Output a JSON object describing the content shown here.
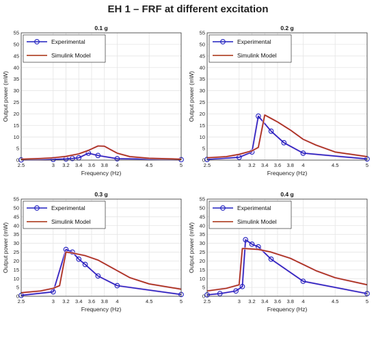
{
  "figure_title": "EH 1 – FRF at different excitation",
  "colors": {
    "experimental": "#1f1fbf",
    "simulink": "#a52a0a",
    "grid": "#e4e4e4",
    "axis": "#333333",
    "glow": "#f2c8ee"
  },
  "chart_data": [
    {
      "type": "line",
      "title": "0.1 g",
      "xlabel": "Frequency (Hz)",
      "ylabel": "Output power (mW)",
      "xlim": [
        2.5,
        5
      ],
      "ylim": [
        0,
        55
      ],
      "xticks": [
        2.5,
        3,
        3.2,
        3.4,
        3.6,
        3.8,
        4,
        4.5,
        5
      ],
      "yticks": [
        0,
        5,
        10,
        15,
        20,
        25,
        30,
        35,
        40,
        45,
        50,
        55
      ],
      "grid": true,
      "legend_position": "top-left",
      "series": [
        {
          "name": "Experimental",
          "markers": true,
          "x": [
            2.5,
            3.0,
            3.2,
            3.3,
            3.4,
            3.55,
            3.7,
            4.0,
            5.0
          ],
          "y": [
            0.1,
            0.3,
            0.5,
            0.7,
            1.0,
            3.0,
            2.0,
            0.6,
            0.2
          ]
        },
        {
          "name": "Simulink Model",
          "markers": false,
          "x": [
            2.5,
            2.8,
            3.0,
            3.2,
            3.4,
            3.55,
            3.7,
            3.8,
            3.9,
            4.0,
            4.2,
            4.5,
            5.0
          ],
          "y": [
            0.4,
            0.7,
            1.0,
            1.6,
            2.7,
            4.2,
            6.1,
            6.0,
            4.5,
            3.0,
            1.5,
            0.8,
            0.4
          ]
        }
      ]
    },
    {
      "type": "line",
      "title": "0.2 g",
      "xlabel": "Frequency (Hz)",
      "ylabel": "Output power (mW)",
      "xlim": [
        2.5,
        5
      ],
      "ylim": [
        0,
        55
      ],
      "xticks": [
        2.5,
        3,
        3.2,
        3.4,
        3.6,
        3.8,
        4,
        4.5,
        5
      ],
      "yticks": [
        0,
        5,
        10,
        15,
        20,
        25,
        30,
        35,
        40,
        45,
        50,
        55
      ],
      "grid": true,
      "legend_position": "top-left",
      "series": [
        {
          "name": "Experimental",
          "markers": true,
          "x": [
            2.5,
            3.0,
            3.2,
            3.3,
            3.5,
            3.7,
            4.0,
            5.0
          ],
          "y": [
            0.3,
            1.2,
            3.5,
            19.0,
            12.5,
            7.5,
            3.0,
            0.5
          ]
        },
        {
          "name": "Simulink Model",
          "markers": false,
          "x": [
            2.5,
            2.8,
            3.0,
            3.2,
            3.3,
            3.4,
            3.5,
            3.6,
            3.8,
            4.0,
            4.2,
            4.5,
            5.0
          ],
          "y": [
            1.0,
            1.5,
            2.5,
            4.0,
            5.5,
            19.5,
            18.0,
            16.5,
            13.0,
            9.0,
            6.5,
            3.5,
            1.5
          ]
        }
      ]
    },
    {
      "type": "line",
      "title": "0.3 g",
      "xlabel": "Frequency (Hz)",
      "ylabel": "Output power (mW)",
      "xlim": [
        2.5,
        5
      ],
      "ylim": [
        0,
        55
      ],
      "xticks": [
        2.5,
        3,
        3.2,
        3.4,
        3.6,
        3.8,
        4,
        4.5,
        5
      ],
      "yticks": [
        0,
        5,
        10,
        15,
        20,
        25,
        30,
        35,
        40,
        45,
        50,
        55
      ],
      "grid": true,
      "legend_position": "top-left",
      "series": [
        {
          "name": "Experimental",
          "markers": true,
          "x": [
            2.5,
            3.0,
            3.2,
            3.3,
            3.4,
            3.5,
            3.7,
            4.0,
            5.0
          ],
          "y": [
            0.5,
            2.5,
            26.5,
            25.0,
            21.0,
            18.0,
            11.5,
            6.0,
            1.0
          ]
        },
        {
          "name": "Simulink Model",
          "markers": false,
          "x": [
            2.5,
            2.8,
            3.0,
            3.1,
            3.2,
            3.3,
            3.5,
            3.7,
            4.0,
            4.2,
            4.5,
            5.0
          ],
          "y": [
            2.0,
            3.0,
            4.5,
            6.0,
            25.0,
            24.5,
            23.0,
            20.5,
            14.5,
            10.5,
            7.0,
            4.0
          ]
        }
      ]
    },
    {
      "type": "line",
      "title": "0.4 g",
      "xlabel": "Frequency (Hz)",
      "ylabel": "Output power (mW)",
      "xlim": [
        2.5,
        5
      ],
      "ylim": [
        0,
        55
      ],
      "xticks": [
        2.5,
        3,
        3.2,
        3.4,
        3.6,
        3.8,
        4,
        4.5,
        5
      ],
      "yticks": [
        0,
        5,
        10,
        15,
        20,
        25,
        30,
        35,
        40,
        45,
        50,
        55
      ],
      "grid": true,
      "legend_position": "top-left",
      "series": [
        {
          "name": "Experimental",
          "markers": true,
          "x": [
            2.5,
            2.7,
            2.95,
            3.05,
            3.1,
            3.2,
            3.3,
            3.5,
            4.0,
            5.0
          ],
          "y": [
            0.8,
            1.5,
            3.0,
            5.5,
            32.0,
            29.5,
            28.0,
            21.0,
            8.5,
            1.5
          ]
        },
        {
          "name": "Simulink Model",
          "markers": false,
          "x": [
            2.5,
            2.8,
            3.0,
            3.05,
            3.1,
            3.3,
            3.5,
            3.8,
            4.0,
            4.2,
            4.5,
            5.0
          ],
          "y": [
            3.0,
            4.5,
            6.5,
            27.0,
            27.0,
            26.5,
            25.0,
            21.5,
            18.0,
            14.5,
            10.5,
            6.5
          ]
        }
      ]
    }
  ]
}
